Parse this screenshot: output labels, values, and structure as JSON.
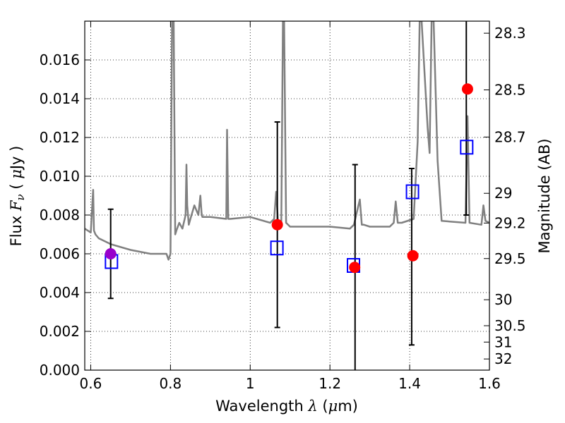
{
  "chart_data": {
    "type": "scatter",
    "title": "",
    "xlabel": "Wavelength  λ (μm)",
    "ylabel": "Flux  Fν  ( μJy )",
    "y2label": "Magnitude (AB)",
    "xlim": [
      0.585,
      1.6
    ],
    "ylim": [
      0.0,
      0.018
    ],
    "grid": true,
    "x_ticks": [
      0.6,
      0.8,
      1.0,
      1.2,
      1.4,
      1.6
    ],
    "x_tick_labels": [
      "0.6",
      "0.8",
      "1",
      "1.2",
      "1.4",
      "1.6"
    ],
    "y_ticks": [
      0.0,
      0.002,
      0.004,
      0.006,
      0.008,
      0.01,
      0.012,
      0.014,
      0.016
    ],
    "y_tick_labels": [
      "0.000",
      "0.002",
      "0.004",
      "0.006",
      "0.008",
      "0.010",
      "0.012",
      "0.014",
      "0.016"
    ],
    "magnitude_ticks": [
      {
        "mag": 28.3,
        "label": "28.3"
      },
      {
        "mag": 28.5,
        "label": "28.5"
      },
      {
        "mag": 28.7,
        "label": "28.7"
      },
      {
        "mag": 29.0,
        "label": "29"
      },
      {
        "mag": 29.2,
        "label": "29.2"
      },
      {
        "mag": 29.5,
        "label": "29.5"
      },
      {
        "mag": 30.0,
        "label": "30"
      },
      {
        "mag": 30.5,
        "label": "30.5"
      },
      {
        "mag": 31.0,
        "label": "31"
      },
      {
        "mag": 32.0,
        "label": "32"
      }
    ],
    "colors": {
      "spectrum": "#808080",
      "model_box": "#0000ff",
      "observed": "#ff0000",
      "highlight": "#9900cc",
      "errorbar": "#000000",
      "grid": "#000000"
    },
    "spectrum": {
      "x": [
        0.585,
        0.6,
        0.606,
        0.608,
        0.612,
        0.62,
        0.65,
        0.7,
        0.75,
        0.79,
        0.795,
        0.8,
        0.804,
        0.806,
        0.808,
        0.812,
        0.815,
        0.822,
        0.83,
        0.838,
        0.84,
        0.842,
        0.846,
        0.85,
        0.86,
        0.87,
        0.875,
        0.878,
        0.88,
        0.9,
        0.94,
        0.942,
        0.945,
        0.95,
        1.0,
        1.05,
        1.06,
        1.065,
        1.07,
        1.078,
        1.082,
        1.085,
        1.09,
        1.1,
        1.15,
        1.2,
        1.25,
        1.26,
        1.275,
        1.28,
        1.285,
        1.3,
        1.35,
        1.36,
        1.365,
        1.37,
        1.38,
        1.41,
        1.42,
        1.425,
        1.43,
        1.445,
        1.45,
        1.455,
        1.46,
        1.47,
        1.48,
        1.54,
        1.545,
        1.55,
        1.58,
        1.585,
        1.59,
        1.6
      ],
      "y": [
        0.0073,
        0.0071,
        0.0093,
        0.0072,
        0.007,
        0.0068,
        0.0065,
        0.0062,
        0.006,
        0.006,
        0.0057,
        0.006,
        0.018,
        0.018,
        0.018,
        0.007,
        0.0072,
        0.0076,
        0.0073,
        0.008,
        0.0106,
        0.0085,
        0.0075,
        0.0078,
        0.0085,
        0.008,
        0.009,
        0.0081,
        0.0079,
        0.0079,
        0.0078,
        0.0124,
        0.0078,
        0.0078,
        0.0079,
        0.0076,
        0.0078,
        0.0092,
        0.0076,
        0.0076,
        0.018,
        0.018,
        0.0076,
        0.0074,
        0.0074,
        0.0074,
        0.0073,
        0.0075,
        0.0088,
        0.0075,
        0.0075,
        0.0074,
        0.0074,
        0.0076,
        0.0087,
        0.0076,
        0.0076,
        0.0078,
        0.0118,
        0.018,
        0.018,
        0.0125,
        0.0112,
        0.018,
        0.018,
        0.0108,
        0.0077,
        0.0076,
        0.0131,
        0.0076,
        0.0075,
        0.0085,
        0.0077,
        0.0076
      ]
    },
    "model_points": {
      "x": [
        0.652,
        1.067,
        1.259,
        1.407,
        1.543
      ],
      "y": [
        0.0056,
        0.0063,
        0.0054,
        0.0092,
        0.0115
      ]
    },
    "observed_points": {
      "x": [
        1.068,
        1.262,
        1.408,
        1.545
      ],
      "y": [
        0.0075,
        0.0053,
        0.0059,
        0.0145
      ]
    },
    "highlight_points": {
      "x": [
        0.65
      ],
      "y": [
        0.006
      ]
    },
    "errorbars": [
      {
        "x": 0.65,
        "low": 0.0037,
        "high": 0.0083
      },
      {
        "x": 1.068,
        "low": 0.0022,
        "high": 0.0128
      },
      {
        "x": 1.263,
        "low": 0.0,
        "high": 0.0106
      },
      {
        "x": 1.405,
        "low": 0.0013,
        "high": 0.0104
      },
      {
        "x": 1.542,
        "low": 0.008,
        "high": 0.018
      }
    ]
  }
}
